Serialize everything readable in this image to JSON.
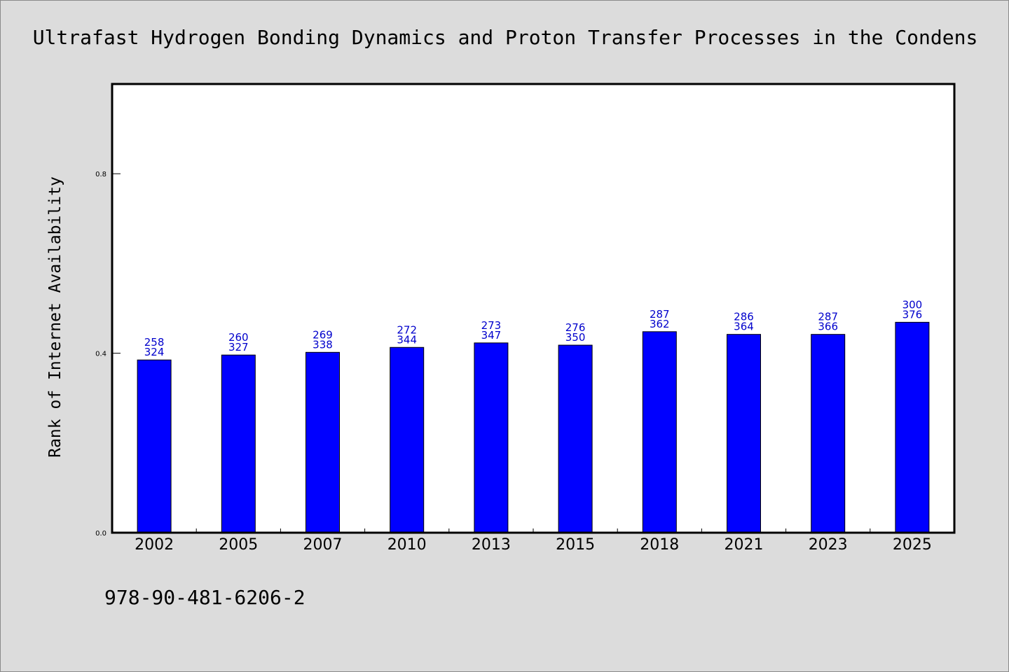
{
  "chart_data": {
    "type": "bar",
    "title": "Ultrafast Hydrogen Bonding Dynamics and Proton Transfer Processes in the Condens",
    "ylabel": "Rank of Internet Availability",
    "xlabel": "",
    "categories": [
      "2002",
      "2005",
      "2007",
      "2010",
      "2013",
      "2015",
      "2018",
      "2021",
      "2023",
      "2025"
    ],
    "values": [
      0.385,
      0.396,
      0.402,
      0.413,
      0.423,
      0.418,
      0.448,
      0.442,
      0.442,
      0.469
    ],
    "data_labels": [
      [
        "258",
        "324"
      ],
      [
        "260",
        "327"
      ],
      [
        "269",
        "338"
      ],
      [
        "272",
        "344"
      ],
      [
        "273",
        "347"
      ],
      [
        "276",
        "350"
      ],
      [
        "287",
        "362"
      ],
      [
        "286",
        "364"
      ],
      [
        "287",
        "366"
      ],
      [
        "300",
        "376"
      ]
    ],
    "yticks": [
      "0.0",
      "0.4",
      "0.8"
    ],
    "ylim": [
      0,
      1.0
    ],
    "grid": false,
    "legend": "none",
    "colors": {
      "bar": "#0000ff",
      "label": "#0000cc",
      "background": "#dcdcdc",
      "plot_bg": "#ffffff"
    }
  },
  "footer": {
    "isbn": "978-90-481-6206-2"
  }
}
